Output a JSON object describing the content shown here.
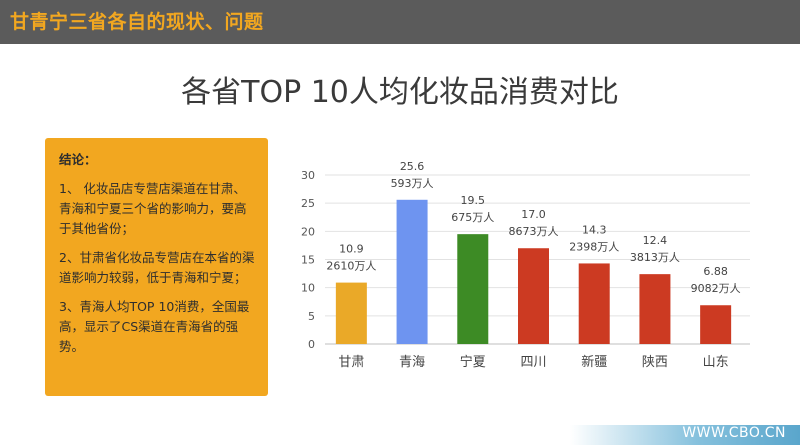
{
  "header": {
    "title": "甘青宁三省各自的现状、问题"
  },
  "main": {
    "title": "各省TOP 10人均化妆品消费对比"
  },
  "conclusion": {
    "heading": "结论：",
    "points": [
      "1、 化妆品店专营店渠道在甘肃、青海和宁夏三个省的影响力，要高于其他省份；",
      "2、甘肃省化妆品专营店在本省的渠道影响力较弱，低于青海和宁夏；",
      "3、青海人均TOP  10消费，全国最高，显示了CS渠道在青海省的强势。"
    ]
  },
  "footer": {
    "logo": "WWW.CBO.CN"
  },
  "chart_data": {
    "type": "bar",
    "categories": [
      "甘肃",
      "青海",
      "宁夏",
      "四川",
      "新疆",
      "陕西",
      "山东"
    ],
    "values": [
      10.9,
      25.6,
      19.5,
      17.0,
      14.3,
      12.4,
      6.88
    ],
    "value_labels": [
      "10.9",
      "25.6",
      "19.5",
      "17.0",
      "14.3",
      "12.4",
      "6.88"
    ],
    "population_labels": [
      "2610万人",
      "593万人",
      "675万人",
      "8673万人",
      "2398万人",
      "3813万人",
      "9082万人"
    ],
    "colors": [
      "#eaa928",
      "#6e94f0",
      "#3d8b25",
      "#cc3a22",
      "#cc3a22",
      "#cc3a22",
      "#cc3a22"
    ],
    "ylim": [
      0,
      30
    ],
    "yticks": [
      0,
      5,
      10,
      15,
      20,
      25,
      30
    ],
    "grid": true,
    "title": "",
    "xlabel": "",
    "ylabel": ""
  }
}
